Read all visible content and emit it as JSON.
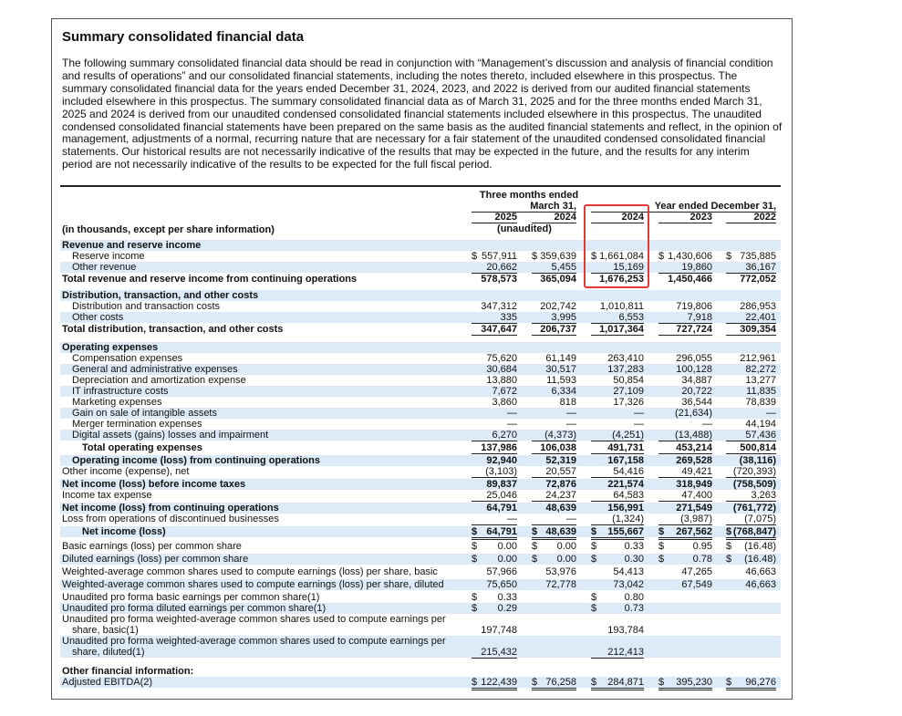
{
  "header": {
    "title": "Summary consolidated financial data",
    "paragraph": [
      "The following summary consolidated financial data should be read in conjunction with “Management’s discussion and analysis of financial condition",
      "and results of operations” and our consolidated financial statements, including the notes thereto, included elsewhere in this prospectus. The",
      "summary consolidated financial data for the years ended December 31, 2024, 2023, and 2022 is derived from our audited financial statements",
      "included elsewhere in this prospectus. The summary consolidated financial data as of March 31, 2025 and for the three months ended March 31,",
      "2025 and 2024 is derived from our unaudited condensed consolidated financial statements included elsewhere in this prospectus. The unaudited",
      "condensed consolidated financial statements have been prepared on the same basis as the audited financial statements and reflect, in the opinion of",
      "management, adjustments of a normal, recurring nature that are necessary for a fair statement of the unaudited condensed consolidated financial",
      "statements. Our historical results are not necessarily indicative of the results that may be expected in the future, and the results for any interim",
      "period are not necessarily indicative of the results to be expected for the full fiscal period."
    ]
  },
  "table": {
    "column_header": {
      "three_months": "Three months ended",
      "march": "March 31,",
      "year": "Year ended December 31,",
      "years": [
        "2025",
        "2024",
        "2024",
        "2023",
        "2022"
      ],
      "unaudited": "(unaudited)"
    },
    "rows": [
      {
        "label": [
          "(in thousands, except per share information)"
        ],
        "bold": true
      },
      {
        "label": [
          "Revenue and reserve income"
        ],
        "bold": true
      },
      {
        "label": [
          "Reserve income"
        ],
        "indent": 1,
        "cells": [
          {
            "cur": "$",
            "v": "557,911"
          },
          {
            "cur": "$",
            "v": "359,639"
          },
          {
            "cur": "$",
            "v": "1,661,084"
          },
          {
            "cur": "$",
            "v": "1,430,606"
          },
          {
            "cur": "$",
            "v": "735,885"
          }
        ]
      },
      {
        "label": [
          "Other revenue"
        ],
        "indent": 1,
        "underline": "single",
        "cells": [
          "20,662",
          "5,455",
          "15,169",
          "19,860",
          "36,167"
        ]
      },
      {
        "label": [
          "Total revenue and reserve income from continuing operations"
        ],
        "bold": true,
        "cells": [
          "578,573",
          "365,094",
          "1,676,253",
          "1,450,466",
          "772,052"
        ]
      },
      {
        "label": [
          "Distribution, transaction, and other costs"
        ],
        "bold": true
      },
      {
        "label": [
          "Distribution and transaction costs"
        ],
        "indent": 1,
        "cells": [
          "347,312",
          "202,742",
          "1,010,811",
          "719,806",
          "286,953"
        ]
      },
      {
        "label": [
          "Other costs"
        ],
        "indent": 1,
        "underline": "single",
        "cells": [
          "335",
          "3,995",
          "6,553",
          "7,918",
          "22,401"
        ]
      },
      {
        "label": [
          "Total distribution, transaction, and other costs"
        ],
        "bold": true,
        "underline": "single",
        "cells": [
          "347,647",
          "206,737",
          "1,017,364",
          "727,724",
          "309,354"
        ]
      },
      {
        "label": [
          "Operating expenses"
        ],
        "bold": true
      },
      {
        "label": [
          "Compensation expenses"
        ],
        "indent": 1,
        "cells": [
          "75,620",
          "61,149",
          "263,410",
          "296,055",
          "212,961"
        ]
      },
      {
        "label": [
          "General and administrative expenses"
        ],
        "indent": 1,
        "cells": [
          "30,684",
          "30,517",
          "137,283",
          "100,128",
          "82,272"
        ]
      },
      {
        "label": [
          "Depreciation and amortization expense"
        ],
        "indent": 1,
        "cells": [
          "13,880",
          "11,593",
          "50,854",
          "34,887",
          "13,277"
        ]
      },
      {
        "label": [
          "IT infrastructure costs"
        ],
        "indent": 1,
        "cells": [
          "7,672",
          "6,334",
          "27,109",
          "20,722",
          "11,835"
        ]
      },
      {
        "label": [
          "Marketing expenses"
        ],
        "indent": 1,
        "cells": [
          "3,860",
          "818",
          "17,326",
          "36,544",
          "78,839"
        ]
      },
      {
        "label": [
          "Gain on sale of intangible assets"
        ],
        "indent": 1,
        "cells": [
          "—",
          "—",
          "—",
          "(21,634)",
          "—"
        ]
      },
      {
        "label": [
          "Merger termination expenses"
        ],
        "indent": 1,
        "cells": [
          "—",
          "—",
          "—",
          "—",
          "44,194"
        ]
      },
      {
        "label": [
          "Digital assets (gains) losses and impairment"
        ],
        "indent": 1,
        "underline": "single",
        "cells": [
          "6,270",
          "(4,373)",
          "(4,251)",
          "(13,488)",
          "57,436"
        ]
      },
      {
        "label": [
          "Total operating expenses"
        ],
        "bold": true,
        "indent": 2,
        "underline": "single",
        "cells": [
          "137,986",
          "106,038",
          "491,731",
          "453,214",
          "500,814"
        ]
      },
      {
        "label": [
          "Operating income (loss) from continuing operations"
        ],
        "bold": true,
        "indent": 1,
        "cells": [
          "92,940",
          "52,319",
          "167,158",
          "269,528",
          "(38,116)"
        ]
      },
      {
        "label": [
          "Other income (expense), net"
        ],
        "underline": "single",
        "cells": [
          "(3,103)",
          "20,557",
          "54,416",
          "49,421",
          "(720,393)"
        ]
      },
      {
        "label": [
          "Net income (loss) before income taxes"
        ],
        "bold": true,
        "cells": [
          "89,837",
          "72,876",
          "221,574",
          "318,949",
          "(758,509)"
        ]
      },
      {
        "label": [
          "Income tax expense"
        ],
        "underline": "single",
        "cells": [
          "25,046",
          "24,237",
          "64,583",
          "47,400",
          "3,263"
        ]
      },
      {
        "label": [
          "Net income (loss) from continuing operations"
        ],
        "bold": true,
        "cells": [
          "64,791",
          "48,639",
          "156,991",
          "271,549",
          "(761,772)"
        ]
      },
      {
        "label": [
          "Loss from operations of discontinued businesses"
        ],
        "underline": "single",
        "cells": [
          "—",
          "—",
          "(1,324)",
          "(3,987)",
          "(7,075)"
        ]
      },
      {
        "label": [
          "Net income (loss)"
        ],
        "bold": true,
        "indent": 2,
        "underline": "double",
        "cells": [
          {
            "cur": "$",
            "v": "64,791"
          },
          {
            "cur": "$",
            "v": "48,639"
          },
          {
            "cur": "$",
            "v": "155,667"
          },
          {
            "cur": "$",
            "v": "267,562"
          },
          {
            "cur": "$",
            "v": "(768,847)"
          }
        ]
      },
      {
        "label": [
          "Basic earnings (loss) per common share"
        ],
        "cells": [
          {
            "cur": "$",
            "v": "0.00"
          },
          {
            "cur": "$",
            "v": "0.00"
          },
          {
            "cur": "$",
            "v": "0.33"
          },
          {
            "cur": "$",
            "v": "0.95"
          },
          {
            "cur": "$",
            "v": "(16.48)"
          }
        ]
      },
      {
        "label": [
          "Diluted earnings (loss) per common share"
        ],
        "cells": [
          {
            "cur": "$",
            "v": "0.00"
          },
          {
            "cur": "$",
            "v": "0.00"
          },
          {
            "cur": "$",
            "v": "0.30"
          },
          {
            "cur": "$",
            "v": "0.78"
          },
          {
            "cur": "$",
            "v": "(16.48)"
          }
        ]
      },
      {
        "label": [
          "Weighted-average common shares used to compute earnings (loss) per share, basic"
        ],
        "cells": [
          "57,966",
          "53,976",
          "54,413",
          "47,265",
          "46,663"
        ]
      },
      {
        "label": [
          "Weighted-average common shares used to compute earnings (loss) per share, diluted"
        ],
        "cells": [
          "75,650",
          "72,778",
          "73,042",
          "67,549",
          "46,663"
        ]
      },
      {
        "label": [
          "Unaudited pro forma basic earnings per common share(1)"
        ],
        "cells": [
          {
            "cur": "$",
            "v": "0.33"
          },
          null,
          {
            "cur": "$",
            "v": "0.80"
          },
          null,
          null
        ]
      },
      {
        "label": [
          "Unaudited pro forma diluted earnings per common share(1)"
        ],
        "cells": [
          {
            "cur": "$",
            "v": "0.29"
          },
          null,
          {
            "cur": "$",
            "v": "0.73"
          },
          null,
          null
        ]
      },
      {
        "label": [
          "Unaudited pro forma weighted-average common shares used to compute earnings per",
          "share, basic(1)"
        ],
        "cells": [
          "197,748",
          null,
          "193,784",
          null,
          null
        ]
      },
      {
        "label": [
          "Unaudited pro forma weighted-average common shares used to compute earnings per",
          "share, diluted(1)"
        ],
        "underline": "single",
        "cells": [
          "215,432",
          null,
          "212,413",
          null,
          null
        ]
      },
      {
        "label": [
          "Other financial information:"
        ],
        "bold": true
      },
      {
        "label": [
          "Adjusted EBITDA(2)"
        ],
        "underline": "double",
        "cells": [
          {
            "cur": "$",
            "v": "122,439"
          },
          {
            "cur": "$",
            "v": "76,258"
          },
          {
            "cur": "$",
            "v": "284,871"
          },
          {
            "cur": "$",
            "v": "395,230"
          },
          {
            "cur": "$",
            "v": "96,276"
          }
        ]
      }
    ]
  }
}
